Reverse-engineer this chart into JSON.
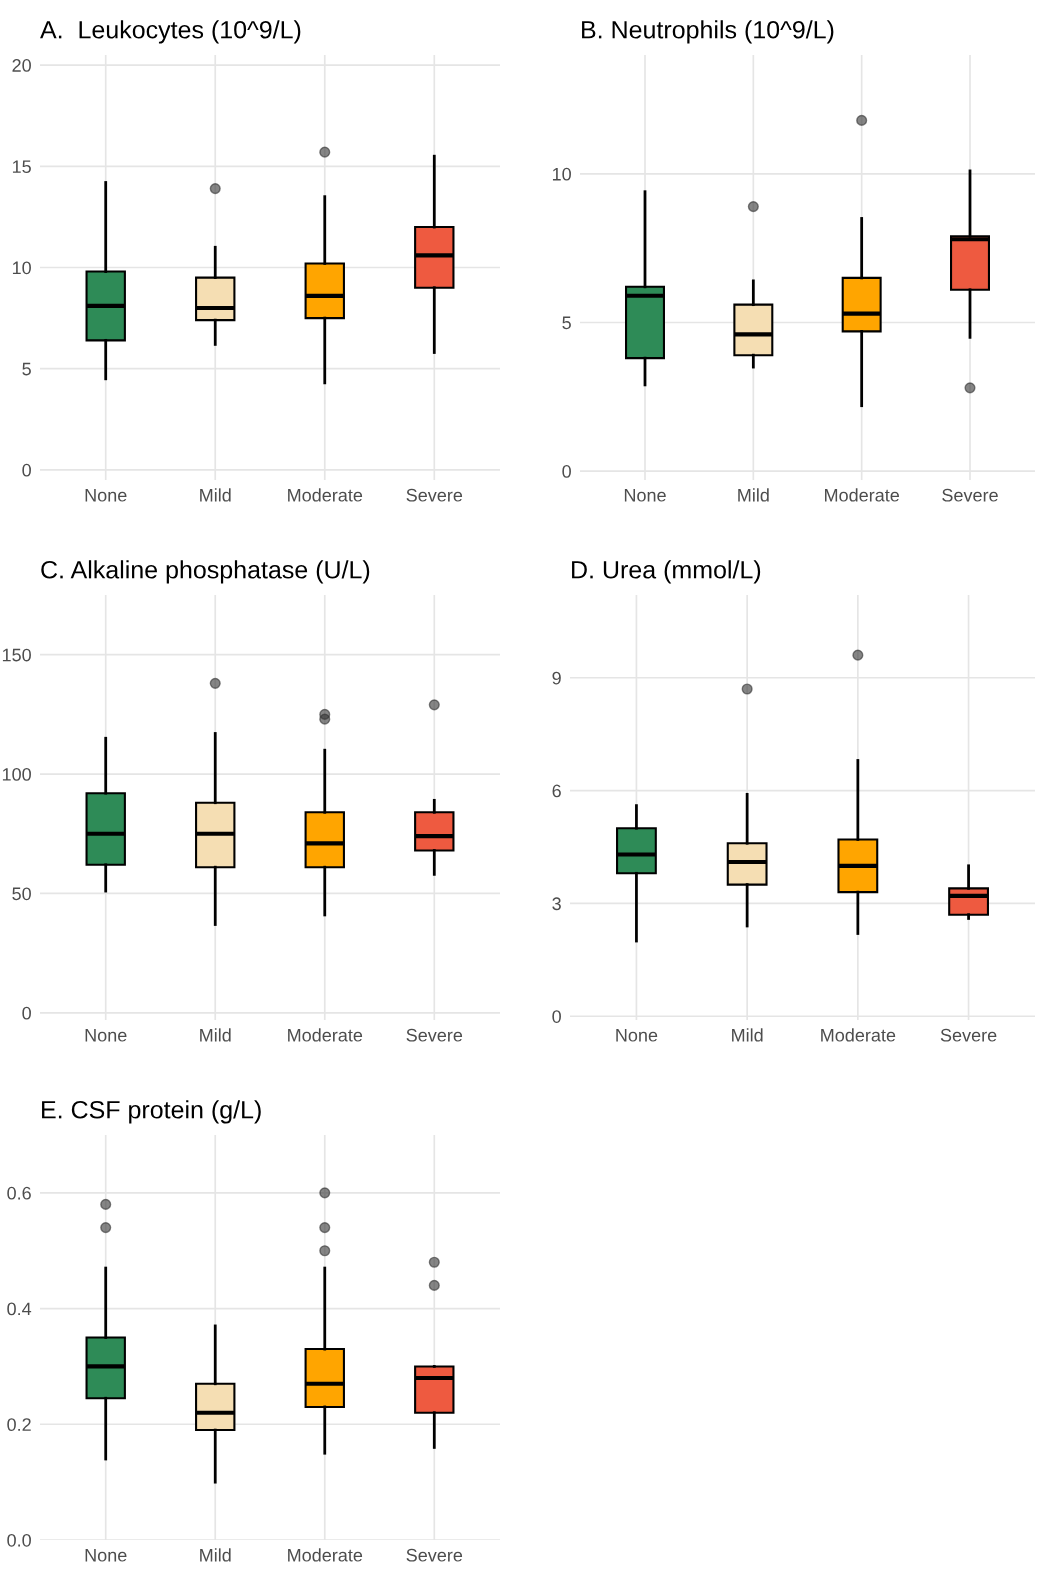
{
  "chart_data": [
    {
      "type": "box",
      "title": "A.  Leukocytes (10^9/L)",
      "categories": [
        "None",
        "Mild",
        "Moderate",
        "Severe"
      ],
      "colors": [
        "#2e8b57",
        "#f5deb3",
        "#ffa500",
        "#ee5a40"
      ],
      "ylim": [
        -0.5,
        20.5
      ],
      "yticks": [
        0,
        5,
        10,
        15,
        20
      ],
      "grid": true,
      "boxes": [
        {
          "low": 4.5,
          "q1": 6.4,
          "median": 8.1,
          "q3": 9.8,
          "high": 14.2
        },
        {
          "low": 6.2,
          "q1": 7.4,
          "median": 8.0,
          "q3": 9.5,
          "high": 11.0,
          "outliers": [
            13.9
          ]
        },
        {
          "low": 4.3,
          "q1": 7.5,
          "median": 8.6,
          "q3": 10.2,
          "high": 13.5,
          "outliers": [
            15.7
          ]
        },
        {
          "low": 5.8,
          "q1": 9.0,
          "median": 10.6,
          "q3": 12.0,
          "high": 15.5
        }
      ]
    },
    {
      "type": "box",
      "title": "B. Neutrophils (10^9/L)",
      "categories": [
        "None",
        "Mild",
        "Moderate",
        "Severe"
      ],
      "colors": [
        "#2e8b57",
        "#f5deb3",
        "#ffa500",
        "#ee5a40"
      ],
      "ylim": [
        -0.3,
        14
      ],
      "yticks": [
        0,
        5,
        10
      ],
      "grid": true,
      "boxes": [
        {
          "low": 2.9,
          "q1": 3.8,
          "median": 5.9,
          "q3": 6.2,
          "high": 9.4
        },
        {
          "low": 3.5,
          "q1": 3.9,
          "median": 4.6,
          "q3": 5.6,
          "high": 6.4,
          "outliers": [
            8.9
          ]
        },
        {
          "low": 2.2,
          "q1": 4.7,
          "median": 5.3,
          "q3": 6.5,
          "high": 8.5,
          "outliers": [
            11.8
          ]
        },
        {
          "low": 4.5,
          "q1": 6.1,
          "median": 7.8,
          "q3": 7.9,
          "high": 10.1,
          "outliers": [
            2.8
          ]
        }
      ]
    },
    {
      "type": "box",
      "title": "C. Alkaline phosphatase (U/L)",
      "categories": [
        "None",
        "Mild",
        "Moderate",
        "Severe"
      ],
      "colors": [
        "#2e8b57",
        "#f5deb3",
        "#ffa500",
        "#ee5a40"
      ],
      "ylim": [
        -3,
        175
      ],
      "yticks": [
        0,
        50,
        100,
        150
      ],
      "grid": true,
      "boxes": [
        {
          "low": 51,
          "q1": 62,
          "median": 75,
          "q3": 92,
          "high": 115
        },
        {
          "low": 37,
          "q1": 61,
          "median": 75,
          "q3": 88,
          "high": 117,
          "outliers": [
            138
          ]
        },
        {
          "low": 41,
          "q1": 61,
          "median": 71,
          "q3": 84,
          "high": 110,
          "outliers": [
            123,
            125
          ]
        },
        {
          "low": 58,
          "q1": 68,
          "median": 74,
          "q3": 84,
          "high": 89,
          "outliers": [
            129
          ]
        }
      ]
    },
    {
      "type": "box",
      "title": "D. Urea (mmol/L)",
      "categories": [
        "None",
        "Mild",
        "Moderate",
        "Severe"
      ],
      "colors": [
        "#2e8b57",
        "#f5deb3",
        "#ffa500",
        "#ee5a40"
      ],
      "ylim": [
        -0.1,
        11.2
      ],
      "yticks": [
        0,
        3,
        6,
        9
      ],
      "grid": true,
      "boxes": [
        {
          "low": 2.0,
          "q1": 3.8,
          "median": 4.3,
          "q3": 5.0,
          "high": 5.6
        },
        {
          "low": 2.4,
          "q1": 3.5,
          "median": 4.1,
          "q3": 4.6,
          "high": 5.9,
          "outliers": [
            8.7
          ]
        },
        {
          "low": 2.2,
          "q1": 3.3,
          "median": 4.0,
          "q3": 4.7,
          "high": 6.8,
          "outliers": [
            9.6
          ]
        },
        {
          "low": 2.6,
          "q1": 2.7,
          "median": 3.2,
          "q3": 3.4,
          "high": 4.0
        }
      ]
    },
    {
      "type": "box",
      "title": "E. CSF protein (g/L)",
      "categories": [
        "None",
        "Mild",
        "Moderate",
        "Severe"
      ],
      "colors": [
        "#2e8b57",
        "#f5deb3",
        "#ffa500",
        "#ee5a40"
      ],
      "ylim": [
        0,
        0.7
      ],
      "yticks": [
        {
          "value": 0,
          "label": "0.0"
        },
        0.2,
        0.4,
        0.6
      ],
      "grid": true,
      "boxes": [
        {
          "low": 0.14,
          "q1": 0.245,
          "median": 0.3,
          "q3": 0.35,
          "high": 0.47,
          "outliers": [
            0.54,
            0.58
          ]
        },
        {
          "low": 0.1,
          "q1": 0.19,
          "median": 0.22,
          "q3": 0.27,
          "high": 0.37
        },
        {
          "low": 0.15,
          "q1": 0.23,
          "median": 0.27,
          "q3": 0.33,
          "high": 0.47,
          "outliers": [
            0.5,
            0.54,
            0.6
          ]
        },
        {
          "low": 0.16,
          "q1": 0.22,
          "median": 0.28,
          "q3": 0.3,
          "high": 0.3,
          "outliers": [
            0.44,
            0.48
          ]
        }
      ]
    }
  ]
}
